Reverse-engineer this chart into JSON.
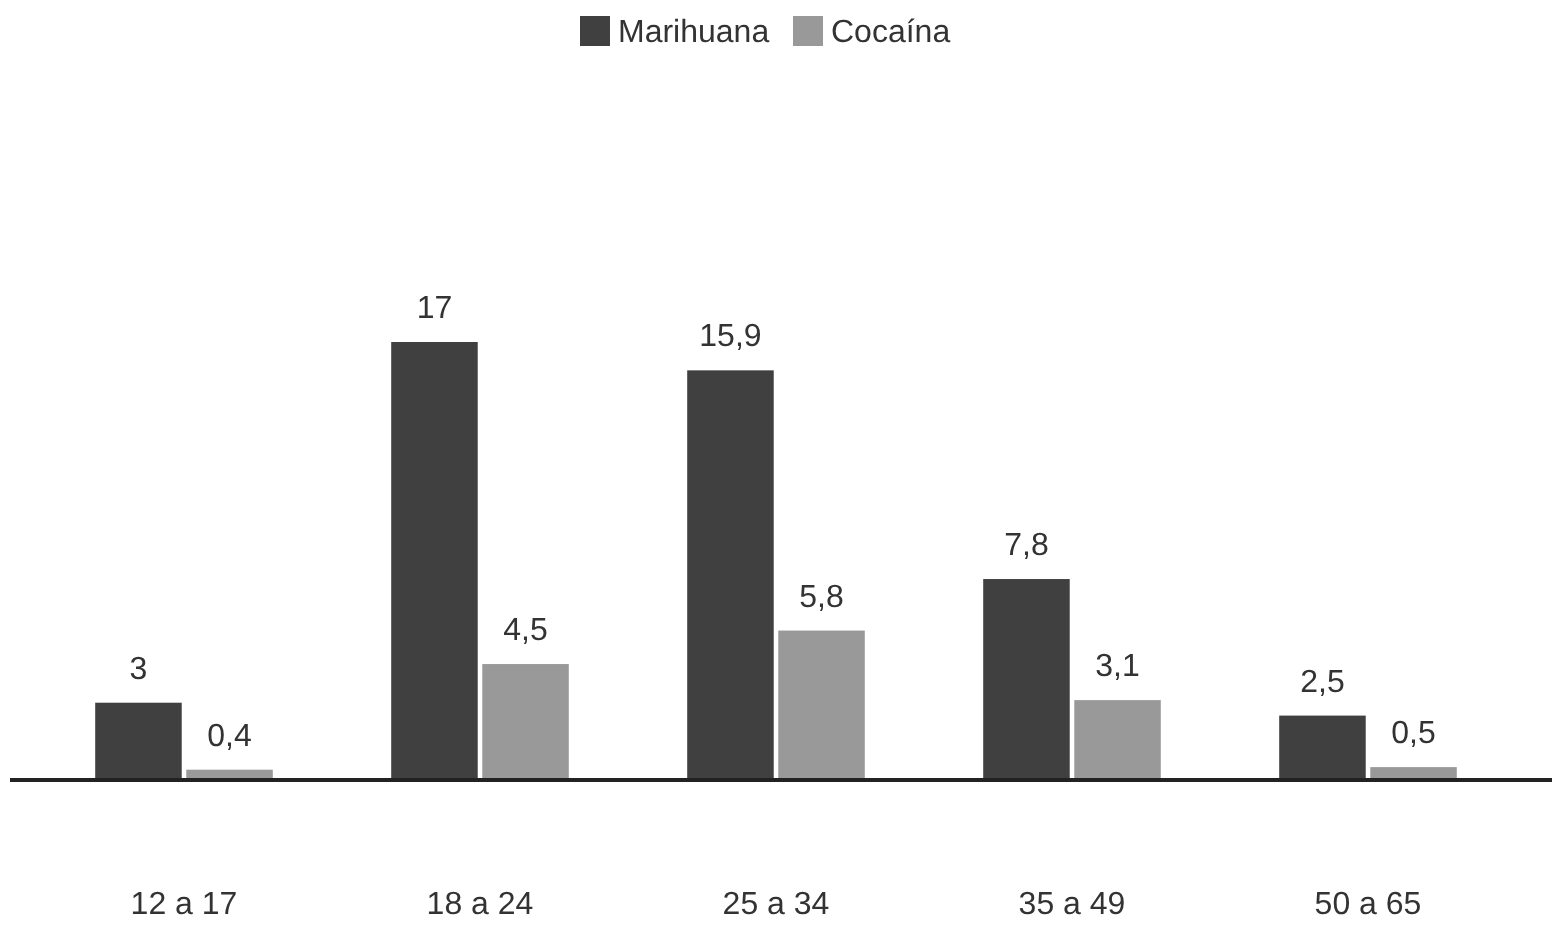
{
  "chart_data": {
    "type": "bar",
    "categories": [
      "12 a 17",
      "18 a 24",
      "25 a 34",
      "35 a 49",
      "50 a 65"
    ],
    "series": [
      {
        "name": "Marihuana",
        "color": "#404040",
        "values": [
          3,
          17,
          15.9,
          7.8,
          2.5
        ],
        "value_labels": [
          "3",
          "17",
          "15,9",
          "7,8",
          "2,5"
        ]
      },
      {
        "name": "Cocaína",
        "color": "#999999",
        "values": [
          0.4,
          4.5,
          5.8,
          3.1,
          0.5
        ],
        "value_labels": [
          "0,4",
          "4,5",
          "5,8",
          "3,1",
          "0,5"
        ]
      }
    ],
    "legend": "top"
  }
}
